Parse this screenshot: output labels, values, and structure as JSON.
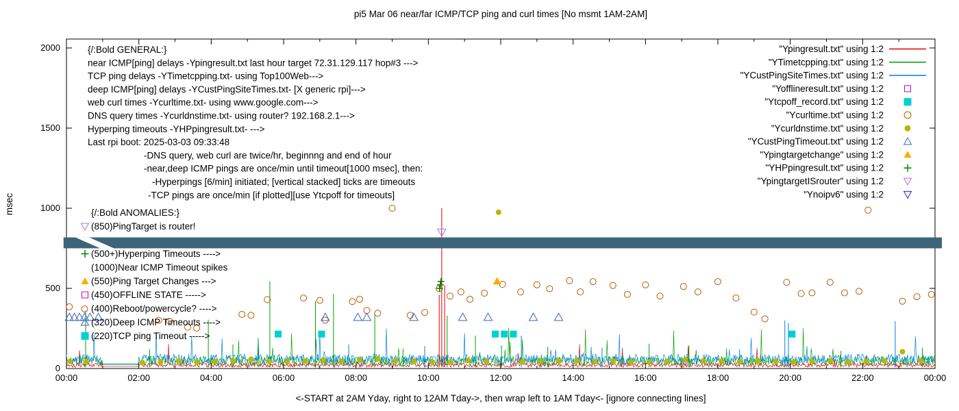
{
  "chart_data": {
    "type": "line",
    "title": "pi5 Mar 06  near/far ICMP/TCP ping and curl times [No msmt 1AM-2AM]",
    "xlabel": "<-START at 2AM Yday, right to 12AM Tday->, then wrap left to 1AM Tday<- [ignore connecting lines]",
    "ylabel": "msec",
    "ylim": [
      0,
      2000
    ],
    "yticks": [
      0,
      500,
      1000,
      1500,
      2000
    ],
    "xticks": [
      {
        "t": 0,
        "label": "00:00"
      },
      {
        "t": 2,
        "label": "02:00"
      },
      {
        "t": 4,
        "label": "04:00"
      },
      {
        "t": 6,
        "label": "06:00"
      },
      {
        "t": 8,
        "label": "08:00"
      },
      {
        "t": 10,
        "label": "10:00"
      },
      {
        "t": 12,
        "label": "12:00"
      },
      {
        "t": 14,
        "label": "14:00"
      },
      {
        "t": 16,
        "label": "16:00"
      },
      {
        "t": 18,
        "label": "18:00"
      },
      {
        "t": 20,
        "label": "20:00"
      },
      {
        "t": 22,
        "label": "22:00"
      },
      {
        "t": 24,
        "label": "00:00"
      }
    ],
    "minor_xticks": [
      1,
      3,
      5,
      7,
      9,
      11,
      13,
      15,
      17,
      19,
      21,
      23
    ],
    "no_measurement_window_hours": [
      1,
      2
    ],
    "legend": [
      {
        "label": "\"Ypingresult.txt\" using 1:2",
        "shape": "line",
        "color": "#dd0000"
      },
      {
        "label": "\"YTimetcpping.txt\" using 1:2",
        "shape": "line",
        "color": "#00a000"
      },
      {
        "label": "\"YCustPingSiteTimes.txt\" using 1:2",
        "shape": "line",
        "color": "#0080e0"
      },
      {
        "label": "\"Yofflineresult.txt\" using 1:2",
        "shape": "square-open",
        "color": "#c000c0"
      },
      {
        "label": "\"Ytcpoff_record.txt\" using 1:2",
        "shape": "square-filled",
        "color": "#00d0d0"
      },
      {
        "label": "\"Ycurltime.txt\" using 1:2",
        "shape": "circle-open",
        "color": "#c05800"
      },
      {
        "label": "\"Ycurldnstime.txt\" using 1:2",
        "shape": "circle-filled",
        "color": "#b8b800"
      },
      {
        "label": "\"YCustPingTimeout.txt\" using 1:2",
        "shape": "triangle-open",
        "color": "#3a64c8"
      },
      {
        "label": "\"Ypingtargetchange\" using 1:2",
        "shape": "triangle-filled",
        "color": "#ffaa00"
      },
      {
        "label": "\"YHPpingresult.txt\" using 1:2",
        "shape": "plus",
        "color": "#008000"
      },
      {
        "label": "\"YpingtargetISrouter\" using 1:2",
        "shape": "triangle-down-open",
        "color": "#b070f0"
      },
      {
        "label": "\"Ynoipv6\" using 1:2",
        "shape": "triangle-down-open",
        "color": "#2222cc"
      }
    ],
    "noise_series": [
      {
        "name": "near-icmp-noise",
        "color": "#dd0000",
        "seed": 101,
        "base": 8,
        "amp": 28,
        "spike_p": 0.012,
        "spike_amp": 120,
        "gap_value": 12
      },
      {
        "name": "tcp-ping-noise",
        "color": "#00a000",
        "seed": 202,
        "base": 18,
        "amp": 60,
        "spike_p": 0.02,
        "spike_amp": 180,
        "gap_value": 30
      },
      {
        "name": "deep-icmp-noise",
        "color": "#0080e0",
        "seed": 303,
        "base": 25,
        "amp": 65,
        "spike_p": 0.015,
        "spike_amp": 160,
        "gap_value": 24
      }
    ],
    "spike_series": [
      {
        "name": "near-icmp-spike",
        "color": "#dd0000",
        "data": [
          [
            10.3,
            460
          ],
          [
            10.37,
            1000
          ],
          [
            10.45,
            520
          ]
        ]
      },
      {
        "name": "tcp-ping-spike",
        "color": "#00a000",
        "data": [
          [
            0.53,
            360
          ],
          [
            2.3,
            120
          ],
          [
            3.92,
            305
          ],
          [
            4.6,
            150
          ],
          [
            5.3,
            185
          ],
          [
            5.62,
            545
          ],
          [
            6.88,
            420
          ],
          [
            7.38,
            465
          ],
          [
            8.52,
            335
          ],
          [
            9.3,
            125
          ],
          [
            10.52,
            330
          ],
          [
            11.3,
            205
          ],
          [
            12.02,
            145
          ],
          [
            13.3,
            135
          ],
          [
            16.1,
            155
          ],
          [
            17.2,
            145
          ],
          [
            21.4,
            110
          ],
          [
            23.65,
            130
          ]
        ]
      },
      {
        "name": "deep-icmp-spike",
        "color": "#0080e0",
        "data": [
          [
            7.8,
            150
          ],
          [
            9.9,
            140
          ],
          [
            12.57,
            205
          ],
          [
            14.8,
            130
          ],
          [
            18.6,
            120
          ],
          [
            19.85,
            300
          ],
          [
            19.95,
            285
          ],
          [
            22.9,
            295
          ]
        ]
      }
    ],
    "point_series": [
      {
        "name": "curl-time-point",
        "series": "Ycurltime.txt",
        "shape": "circle-open",
        "color": "#c05800",
        "size": 5,
        "data": [
          [
            0.08,
            385
          ],
          [
            0.5,
            372
          ],
          [
            2.55,
            300
          ],
          [
            2.85,
            295
          ],
          [
            3.35,
            258
          ],
          [
            3.6,
            252
          ],
          [
            4.85,
            338
          ],
          [
            5.1,
            332
          ],
          [
            5.55,
            430
          ],
          [
            6.55,
            440
          ],
          [
            7.0,
            425
          ],
          [
            7.15,
            302
          ],
          [
            7.9,
            418
          ],
          [
            8.1,
            432
          ],
          [
            8.3,
            362
          ],
          [
            8.6,
            345
          ],
          [
            9.0,
            1000
          ],
          [
            9.5,
            332
          ],
          [
            9.9,
            350
          ],
          [
            10.3,
            498
          ],
          [
            10.6,
            452
          ],
          [
            10.9,
            478
          ],
          [
            11.15,
            432
          ],
          [
            11.55,
            470
          ],
          [
            12.05,
            525
          ],
          [
            12.55,
            478
          ],
          [
            13.0,
            522
          ],
          [
            13.35,
            498
          ],
          [
            13.9,
            548
          ],
          [
            14.2,
            478
          ],
          [
            14.55,
            542
          ],
          [
            15.1,
            518
          ],
          [
            15.5,
            462
          ],
          [
            16.0,
            522
          ],
          [
            16.4,
            452
          ],
          [
            17.05,
            512
          ],
          [
            17.45,
            478
          ],
          [
            18.0,
            542
          ],
          [
            18.5,
            440
          ],
          [
            19.0,
            352
          ],
          [
            19.3,
            310
          ],
          [
            19.9,
            538
          ],
          [
            20.3,
            468
          ],
          [
            20.6,
            472
          ],
          [
            21.1,
            538
          ],
          [
            21.5,
            472
          ],
          [
            21.9,
            482
          ],
          [
            22.15,
            988
          ],
          [
            23.1,
            420
          ],
          [
            23.5,
            448
          ],
          [
            23.9,
            462
          ]
        ]
      },
      {
        "name": "dns-time-point",
        "series": "Ycurldnstime.txt",
        "shape": "circle-filled",
        "color": "#b8b800",
        "size": 5,
        "data": [
          [
            0.1,
            45
          ],
          [
            0.55,
            40
          ],
          [
            2.1,
            38
          ],
          [
            2.6,
            42
          ],
          [
            3.1,
            48
          ],
          [
            3.6,
            40
          ],
          [
            4.1,
            45
          ],
          [
            4.6,
            50
          ],
          [
            5.1,
            58
          ],
          [
            5.6,
            45
          ],
          [
            6.1,
            42
          ],
          [
            6.6,
            48
          ],
          [
            7.1,
            52
          ],
          [
            7.6,
            45
          ],
          [
            8.1,
            55
          ],
          [
            8.6,
            60
          ],
          [
            9.1,
            48
          ],
          [
            9.6,
            45
          ],
          [
            10.1,
            42
          ],
          [
            10.6,
            40
          ],
          [
            11.1,
            50
          ],
          [
            11.6,
            45
          ],
          [
            11.94,
            975
          ],
          [
            12.6,
            42
          ],
          [
            13.1,
            45
          ],
          [
            13.6,
            48
          ],
          [
            14.1,
            50
          ],
          [
            14.6,
            42
          ],
          [
            15.1,
            45
          ],
          [
            15.6,
            40
          ],
          [
            16.1,
            40
          ],
          [
            16.6,
            45
          ],
          [
            17.1,
            55
          ],
          [
            17.6,
            48
          ],
          [
            18.1,
            45
          ],
          [
            18.6,
            42
          ],
          [
            19.1,
            48
          ],
          [
            19.6,
            45
          ],
          [
            20.1,
            42
          ],
          [
            20.6,
            45
          ],
          [
            21.1,
            48
          ],
          [
            21.6,
            42
          ],
          [
            22.1,
            45
          ],
          [
            22.6,
            48
          ],
          [
            23.1,
            105
          ],
          [
            23.6,
            50
          ]
        ]
      },
      {
        "name": "deep-icmp-timeout-point",
        "series": "YCustPingTimeout.txt",
        "shape": "triangle-open",
        "color": "#3a64c8",
        "size": 6,
        "data": [
          [
            0.08,
            320
          ],
          [
            0.22,
            320
          ],
          [
            0.36,
            320
          ],
          [
            0.5,
            320
          ],
          [
            0.65,
            320
          ],
          [
            0.88,
            320
          ],
          [
            7.15,
            320
          ],
          [
            8.05,
            320
          ],
          [
            8.3,
            320
          ],
          [
            9.6,
            320
          ],
          [
            10.95,
            320
          ],
          [
            11.65,
            320
          ],
          [
            12.9,
            320
          ],
          [
            13.6,
            320
          ]
        ]
      },
      {
        "name": "tcp-ping-timeout-point",
        "series": "Ytcpoff_record.txt",
        "shape": "square-filled",
        "color": "#00d0d0",
        "size": 5,
        "data": [
          [
            5.85,
            215
          ],
          [
            7.05,
            215
          ],
          [
            11.85,
            215
          ],
          [
            12.1,
            215
          ],
          [
            12.35,
            215
          ],
          [
            20.05,
            215
          ]
        ]
      },
      {
        "name": "hyperping-timeout-point",
        "series": "YHPpingresult.txt",
        "shape": "plus",
        "color": "#008000",
        "size": 5,
        "data": [
          [
            10.31,
            500
          ],
          [
            10.33,
            522
          ],
          [
            10.35,
            544
          ]
        ]
      },
      {
        "name": "ping-target-change-point",
        "series": "Ypingtargetchange",
        "shape": "triangle-filled",
        "color": "#ffaa00",
        "size": 6,
        "data": [
          [
            11.9,
            545
          ]
        ]
      },
      {
        "name": "ping-target-is-router-point",
        "series": "YpingtargetISrouter",
        "shape": "triangle-down-open",
        "color": "#b070f0",
        "size": 6,
        "data": [
          [
            10.37,
            850
          ]
        ]
      }
    ],
    "redaction_band": {
      "color": "#3d6579",
      "msec_range": [
        750,
        818
      ],
      "time_range": [
        -0.08,
        24.19
      ],
      "gap_time_range": [
        0.25,
        0.63
      ]
    },
    "general_notes": [
      {
        "text": "{/:Bold GENERAL:}",
        "indent": 0
      },
      {
        "text": "near ICMP[ping] delays -Ypingresult.txt last hour target 72.31.129.117 hop#3 --->",
        "indent": 0
      },
      {
        "text": "TCP ping delays -YTimetcpping.txt- using Top100Web--->",
        "indent": 0
      },
      {
        "text": "deep ICMP[ping] delays -YCustPingSiteTimes.txt- [X generic rpi]--->",
        "indent": 0
      },
      {
        "text": "web curl times -Ycurltime.txt- using www.google.com--->",
        "indent": 0
      },
      {
        "text": "DNS query times -Ycurldnstime.txt- using router? 192.168.2.1--->",
        "indent": 0
      },
      {
        "text": "Hyperping timeouts -YHPpingresult.txt- --->",
        "indent": 0
      },
      {
        "text": "Last rpi boot: 2025-03-03 09:33:48",
        "indent": 0
      },
      {
        "text": "-DNS query, web curl are twice/hr, beginnng and end of hour",
        "indent": 82
      },
      {
        "text": "-near,deep ICMP pings are once/min until timeout[1000 msec], then:",
        "indent": 82
      },
      {
        "text": "-Hyperpings [6/min] initiated; [vertical stacked] ticks are timeouts",
        "indent": 94
      },
      {
        "text": "-TCP pings are once/min [if plotted][use Ytcpoff for timeouts]",
        "indent": 88
      }
    ],
    "anomaly_notes": [
      {
        "text": "{/:Bold ANOMALIES:}",
        "marker": null
      },
      {
        "text": "(850)PingTarget is router!",
        "marker": {
          "shape": "triangle-down-open",
          "color": "#b070f0"
        }
      },
      {
        "text": "",
        "marker": null
      },
      {
        "text": "(500+)Hyperping Timeouts ---->",
        "marker": {
          "shape": "plus",
          "color": "#008000"
        }
      },
      {
        "text": "(1000)Near ICMP Timeout spikes",
        "marker": null
      },
      {
        "text": "(550)Ping Target Changes --->",
        "marker": {
          "shape": "triangle-filled",
          "color": "#ffaa00"
        }
      },
      {
        "text": "(450)OFFLINE STATE ----->",
        "marker": {
          "shape": "square-open",
          "color": "#c000c0"
        }
      },
      {
        "text": "(400)Reboot/powercycle? ---->",
        "marker": null
      },
      {
        "text": "(320)Deep ICMP Timeouts ---->",
        "marker": {
          "shape": "triangle-open",
          "color": "#3a64c8"
        }
      },
      {
        "text": "(220)TCP ping Timeout ----->",
        "marker": {
          "shape": "square-filled",
          "color": "#00d0d0"
        }
      }
    ]
  }
}
